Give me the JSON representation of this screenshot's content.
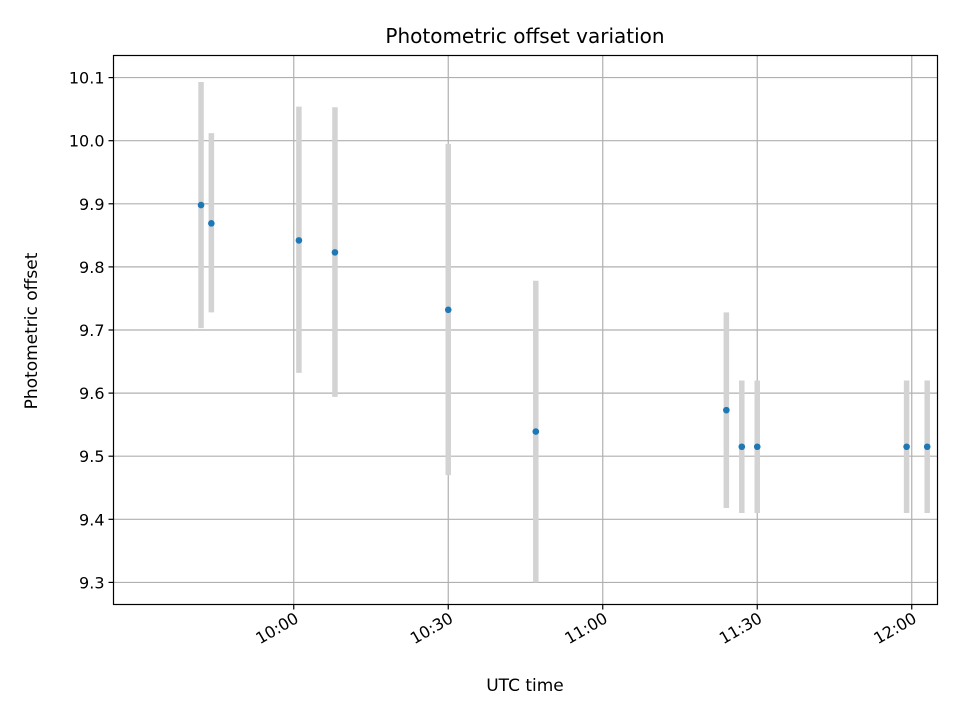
{
  "chart_data": {
    "type": "scatter",
    "title": "Photometric offset variation",
    "xlabel": "UTC time",
    "ylabel": "Photometric offset",
    "xlim": [
      "09:25",
      "12:05"
    ],
    "ylim": [
      9.265,
      10.135
    ],
    "xticks": [
      "10:00",
      "10:30",
      "11:00",
      "11:30",
      "12:00"
    ],
    "yticks": [
      "9.3",
      "9.4",
      "9.5",
      "9.6",
      "9.7",
      "9.8",
      "9.9",
      "10.0",
      "10.1"
    ],
    "grid": true,
    "colors": {
      "point": "#1f77b4",
      "errorbar": "#d3d3d3",
      "grid": "#b0b0b0"
    },
    "series": [
      {
        "points": [
          {
            "x": "09:42",
            "y": 9.898,
            "ylow": 9.703,
            "yhigh": 10.093
          },
          {
            "x": "09:44",
            "y": 9.869,
            "ylow": 9.728,
            "yhigh": 10.012
          },
          {
            "x": "10:01",
            "y": 9.842,
            "ylow": 9.632,
            "yhigh": 10.054
          },
          {
            "x": "10:08",
            "y": 9.823,
            "ylow": 9.594,
            "yhigh": 10.053
          },
          {
            "x": "10:30",
            "y": 9.732,
            "ylow": 9.47,
            "yhigh": 9.995
          },
          {
            "x": "10:47",
            "y": 9.539,
            "ylow": 9.3,
            "yhigh": 9.778
          },
          {
            "x": "11:24",
            "y": 9.573,
            "ylow": 9.418,
            "yhigh": 9.728
          },
          {
            "x": "11:27",
            "y": 9.515,
            "ylow": 9.41,
            "yhigh": 9.62
          },
          {
            "x": "11:30",
            "y": 9.515,
            "ylow": 9.41,
            "yhigh": 9.62
          },
          {
            "x": "11:59",
            "y": 9.515,
            "ylow": 9.41,
            "yhigh": 9.62
          },
          {
            "x": "12:03",
            "y": 9.515,
            "ylow": 9.41,
            "yhigh": 9.62
          }
        ]
      }
    ]
  }
}
